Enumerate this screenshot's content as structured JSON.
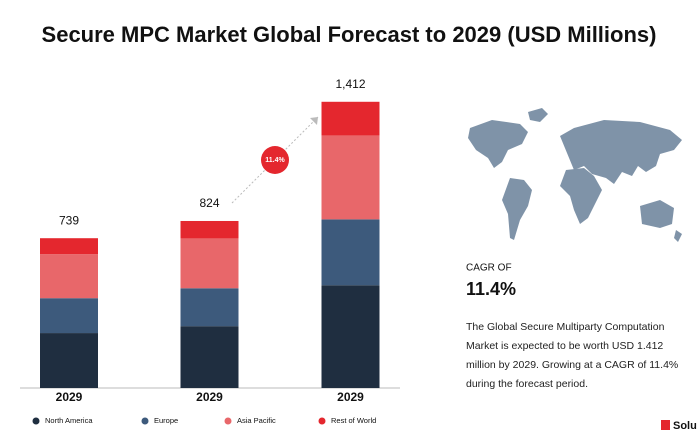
{
  "chart_data": {
    "type": "stacked_bar",
    "title": "Secure MPC Market Global Forecast to 2029 (USD Millions)",
    "categories": [
      "2029",
      "2029",
      "2029"
    ],
    "series": [
      {
        "name": "North America",
        "color": "#1f2e40",
        "values": [
          271,
          305,
          507
        ]
      },
      {
        "name": "Europe",
        "color": "#3d5a7c",
        "values": [
          172,
          187,
          325
        ]
      },
      {
        "name": "Asia Pacific",
        "color": "#e8676a",
        "values": [
          217,
          246,
          414
        ]
      },
      {
        "name": "Rest of World",
        "color": "#e4272e",
        "values": [
          79,
          86,
          166
        ]
      }
    ],
    "totals": [
      739,
      824,
      1412
    ],
    "total_labels": [
      "739",
      "824",
      "1,412"
    ],
    "cagr_badge": "11.4%",
    "side_panel": {
      "label": "CAGR OF",
      "value": "11.4%",
      "text": "The Global Secure Multiparty Computation Market is expected to be worth USD 1.412 million by 2029. Growing at a CAGR of 11.4% during the forecast period."
    },
    "logo": "Solu"
  }
}
